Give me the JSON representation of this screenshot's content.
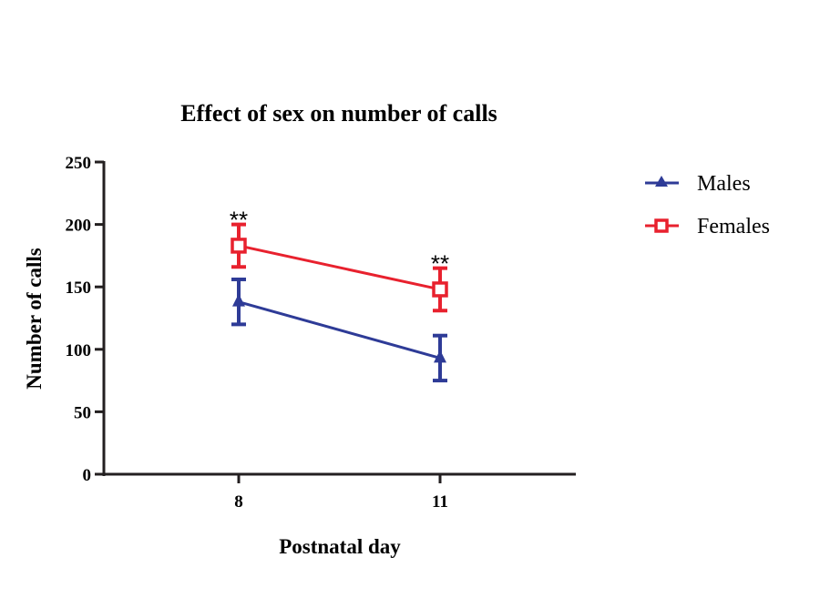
{
  "chart_data": {
    "type": "line",
    "title": "Effect of sex on number of calls",
    "xlabel": "Postnatal day",
    "ylabel": "Number of calls",
    "categories": [
      "8",
      "11"
    ],
    "ylim": [
      0,
      250
    ],
    "yticks": [
      "0",
      "50",
      "100",
      "150",
      "200",
      "250"
    ],
    "grid": false,
    "legend_position": "right",
    "series": [
      {
        "name": "Males",
        "color": "#2e3b97",
        "marker": "triangle",
        "values": [
          138,
          93
        ],
        "errors": [
          18,
          18
        ]
      },
      {
        "name": "Females",
        "color": "#e8212e",
        "marker": "open-square",
        "values": [
          183,
          148
        ],
        "errors": [
          17,
          17
        ]
      }
    ],
    "annotations": [
      "**",
      "**"
    ]
  }
}
